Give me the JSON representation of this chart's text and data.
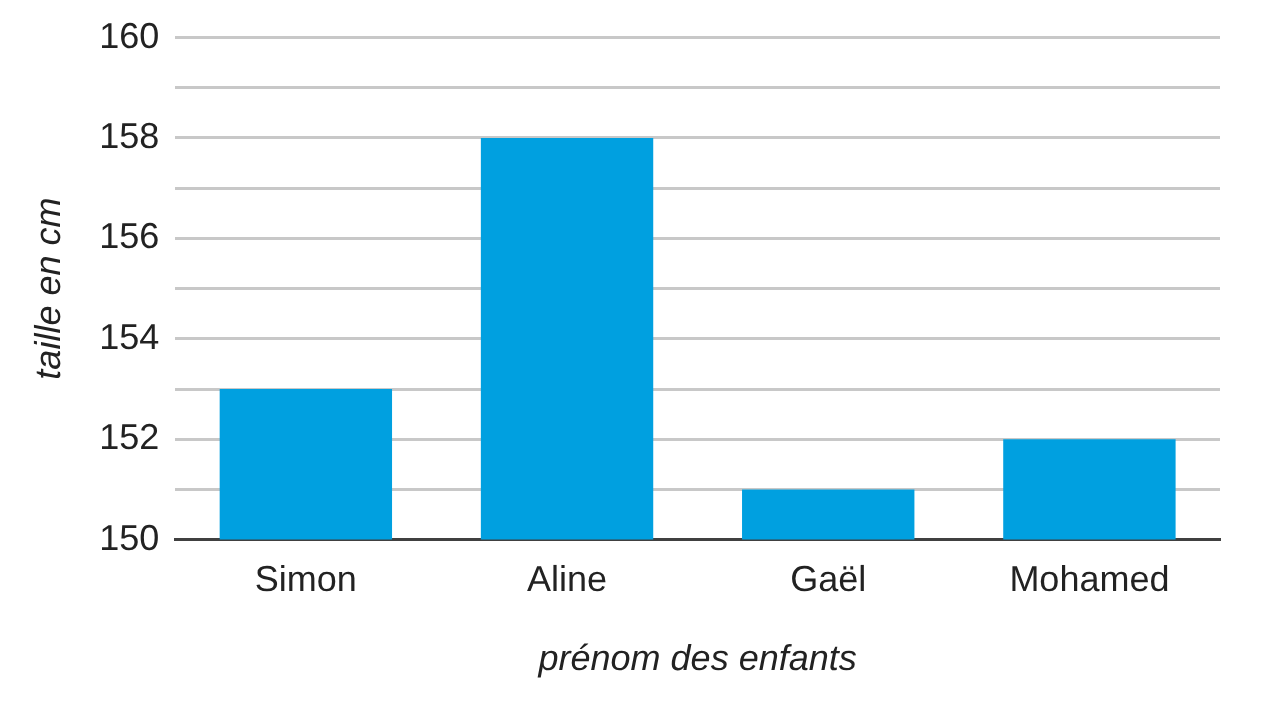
{
  "chart_data": {
    "type": "bar",
    "xlabel": "prénom des enfants",
    "ylabel": "taille en cm",
    "categories": [
      "Simon",
      "Aline",
      "Gaël",
      "Mohamed"
    ],
    "values": [
      153,
      158,
      151,
      152
    ],
    "color": "#00a0e0",
    "ylim": [
      150,
      160
    ],
    "yticks": [
      150,
      {
        "value": 151,
        "label": null
      },
      152,
      {
        "value": 153,
        "label": null
      },
      154,
      {
        "value": 155,
        "label": null
      },
      156,
      {
        "value": 157,
        "label": null
      },
      158,
      {
        "value": 159,
        "label": null
      },
      160
    ],
    "grid": "y",
    "legend": false
  }
}
